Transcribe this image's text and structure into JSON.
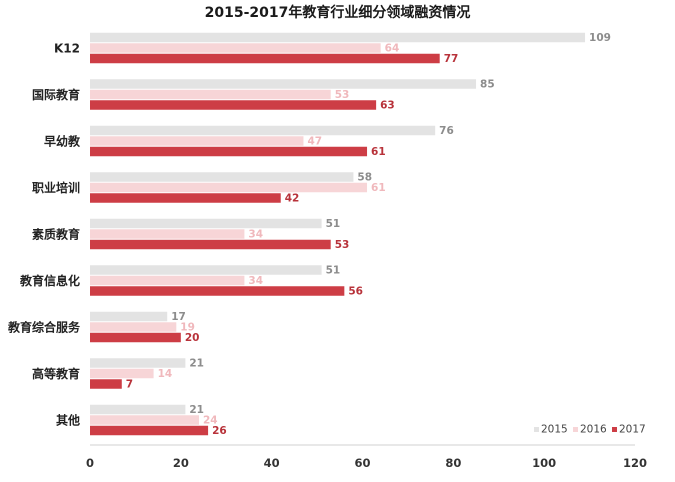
{
  "chart_data": {
    "type": "bar",
    "orientation": "horizontal",
    "title": "2015-2017年教育行业细分领域融资情况",
    "categories": [
      "K12",
      "国际教育",
      "早幼教",
      "职业培训",
      "素质教育",
      "教育信息化",
      "教育综合服务",
      "高等教育",
      "其他"
    ],
    "series": [
      {
        "name": "2015",
        "color": "#e3e3e3",
        "label_color": "#8c8c8c",
        "values": [
          109,
          85,
          76,
          58,
          51,
          51,
          17,
          21,
          21
        ]
      },
      {
        "name": "2016",
        "color": "#f7d5d7",
        "label_color": "#f0b8bc",
        "values": [
          64,
          53,
          47,
          61,
          34,
          34,
          19,
          14,
          24
        ]
      },
      {
        "name": "2017",
        "color": "#cd3d45",
        "label_color": "#b8323a",
        "values": [
          77,
          63,
          61,
          42,
          53,
          56,
          20,
          7,
          26
        ]
      }
    ],
    "xlim": [
      0,
      120
    ],
    "xticks": [
      0,
      20,
      40,
      60,
      80,
      100,
      120
    ],
    "grid": false,
    "legend_position": "bottom-right"
  }
}
